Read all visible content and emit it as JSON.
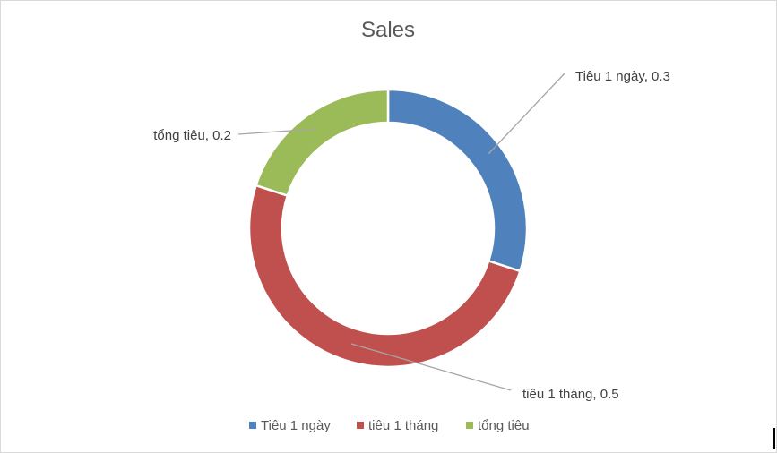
{
  "chart_data": {
    "type": "doughnut",
    "title": "Sales",
    "categories": [
      "Tiêu 1 ngày",
      "tiêu 1 tháng",
      "tổng tiêu"
    ],
    "values": [
      0.3,
      0.5,
      0.2
    ],
    "data_labels": [
      "Tiêu 1 ngày, 0.3",
      "tiêu 1 tháng, 0.5",
      "tổng tiêu, 0.2"
    ],
    "colors": [
      "#4f81bd",
      "#c0504d",
      "#9bbb59"
    ],
    "legend_position": "bottom",
    "start_angle_deg": 0,
    "direction": "clockwise"
  }
}
